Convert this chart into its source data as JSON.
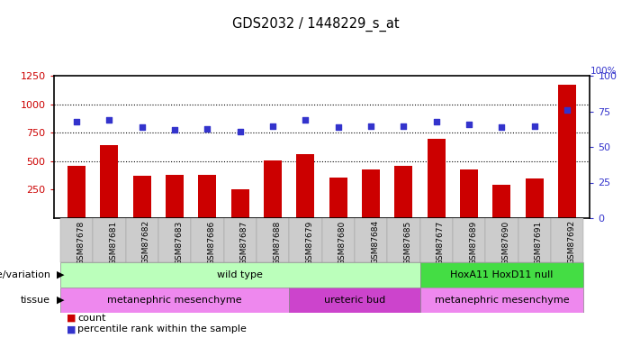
{
  "title": "GDS2032 / 1448229_s_at",
  "samples": [
    "GSM87678",
    "GSM87681",
    "GSM87682",
    "GSM87683",
    "GSM87686",
    "GSM87687",
    "GSM87688",
    "GSM87679",
    "GSM87680",
    "GSM87684",
    "GSM87685",
    "GSM87677",
    "GSM87689",
    "GSM87690",
    "GSM87691",
    "GSM87692"
  ],
  "counts": [
    460,
    640,
    370,
    380,
    380,
    250,
    510,
    560,
    360,
    430,
    460,
    700,
    430,
    290,
    350,
    1170
  ],
  "percentiles": [
    68,
    69,
    64,
    62,
    63,
    61,
    65,
    69,
    64,
    65,
    65,
    68,
    66,
    64,
    65,
    76
  ],
  "ylim_left": [
    0,
    1250
  ],
  "ylim_right": [
    0,
    100
  ],
  "yticks_left": [
    250,
    500,
    750,
    1000,
    1250
  ],
  "yticks_right": [
    0,
    25,
    50,
    75,
    100
  ],
  "bar_color": "#cc0000",
  "dot_color": "#3333cc",
  "genotype_groups": [
    {
      "label": "wild type",
      "start": 0,
      "end": 11,
      "color": "#bbffbb"
    },
    {
      "label": "HoxA11 HoxD11 null",
      "start": 11,
      "end": 16,
      "color": "#44dd44"
    }
  ],
  "tissue_groups": [
    {
      "label": "metanephric mesenchyme",
      "start": 0,
      "end": 7,
      "color": "#ee88ee"
    },
    {
      "label": "ureteric bud",
      "start": 7,
      "end": 11,
      "color": "#cc44cc"
    },
    {
      "label": "metanephric mesenchyme",
      "start": 11,
      "end": 16,
      "color": "#ee88ee"
    }
  ],
  "legend_count_color": "#cc0000",
  "legend_pct_color": "#3333cc"
}
